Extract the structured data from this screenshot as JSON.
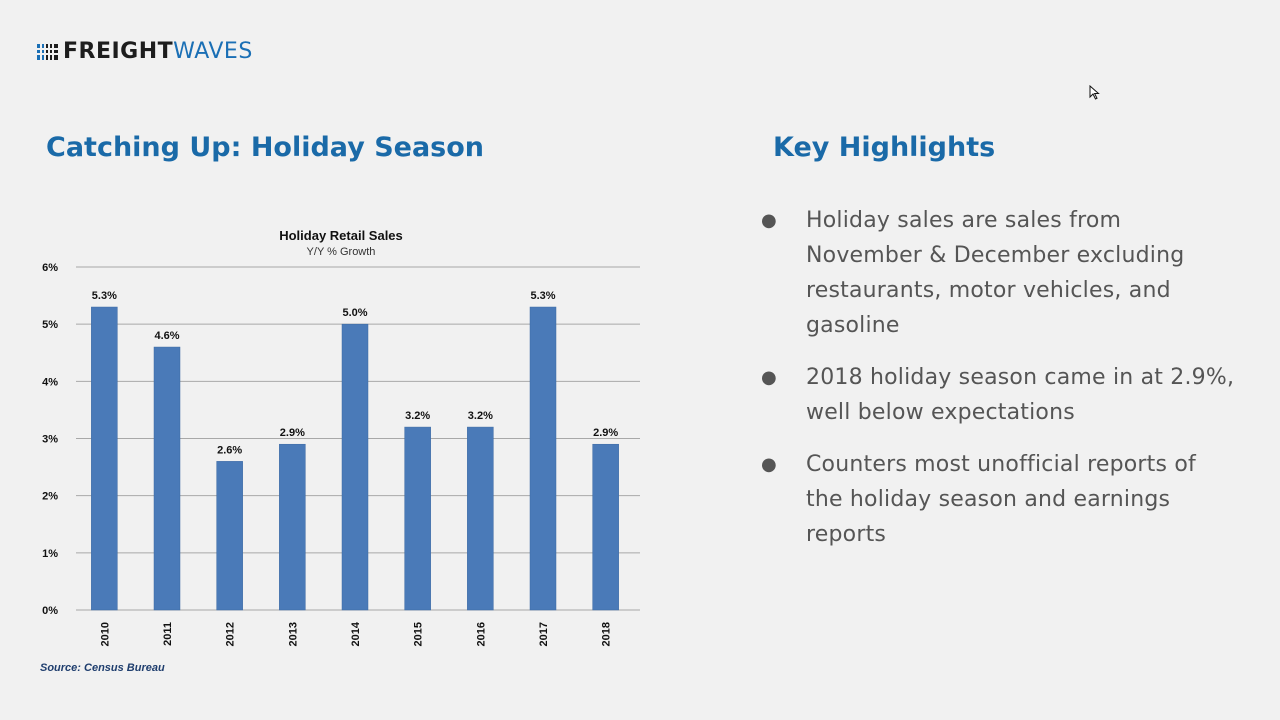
{
  "brand": {
    "logo_bold": "FREIGHT",
    "logo_light": "WAVES"
  },
  "left_section": {
    "title": "Catching Up: Holiday Season"
  },
  "right_section": {
    "title": "Key Highlights",
    "bullets": [
      "Holiday sales are sales from November & December excluding restaurants, motor vehicles, and gasoline",
      "2018 holiday season came in at 2.9%, well below expectations",
      "Counters most unofficial reports of the holiday season and earnings reports"
    ]
  },
  "source": "Source: Census Bureau",
  "colors": {
    "title_blue": "#1a6aa8",
    "bar_blue": "#4a7ab8",
    "source_navy": "#1f3e6e"
  },
  "chart_data": {
    "type": "bar",
    "title": "Holiday Retail Sales",
    "subtitle": "Y/Y % Growth",
    "categories": [
      "2010",
      "2011",
      "2012",
      "2013",
      "2014",
      "2015",
      "2016",
      "2017",
      "2018"
    ],
    "values": [
      5.3,
      4.6,
      2.6,
      2.9,
      5.0,
      3.2,
      3.2,
      5.3,
      2.9
    ],
    "data_labels": [
      "5.3%",
      "4.6%",
      "2.6%",
      "2.9%",
      "5.0%",
      "3.2%",
      "3.2%",
      "5.3%",
      "2.9%"
    ],
    "y_ticks": [
      0,
      1,
      2,
      3,
      4,
      5,
      6
    ],
    "y_tick_labels": [
      "0%",
      "1%",
      "2%",
      "3%",
      "4%",
      "5%",
      "6%"
    ],
    "ylim": [
      0,
      6
    ],
    "xlabel": "",
    "ylabel": "",
    "grid": true,
    "legend": false
  }
}
